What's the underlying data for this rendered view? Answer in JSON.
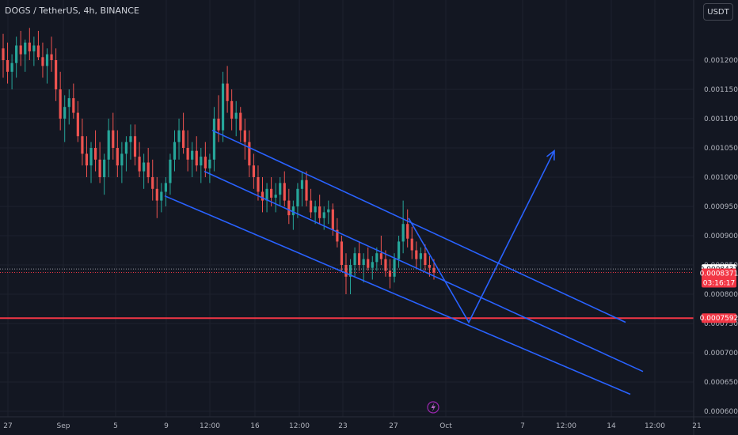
{
  "header": {
    "symbol_text": "DOGS / TetherUS, 4h, BINANCE",
    "currency_button": "USDT"
  },
  "colors": {
    "background": "#131722",
    "grid": "#1e222d",
    "up": "#26a69a",
    "down": "#ef5350",
    "drawing": "#2962ff",
    "support": "#f23645",
    "axis_text": "#b2b5be"
  },
  "icons": {
    "event_marker": "lightning-icon"
  },
  "chart_data": {
    "type": "candlestick",
    "symbol": "DOGS / TetherUS",
    "interval": "4h",
    "exchange": "BINANCE",
    "x_ticks": [
      "27",
      "Sep",
      "5",
      "9",
      "12:00",
      "16",
      "12:00",
      "23",
      "27",
      "Oct",
      "7",
      "12:00",
      "14",
      "12:00",
      "21"
    ],
    "y_ticks": [
      "0.0012000",
      "0.0011500",
      "0.0011000",
      "0.0010500",
      "0.0010000",
      "0.0009500",
      "0.0009000",
      "0.0008500",
      "0.0008000",
      "0.0007500",
      "0.0007000",
      "0.0006500",
      "0.0006000"
    ],
    "ylim": [
      0.000585,
      0.00126
    ],
    "price_tags": [
      {
        "value": "0.0008431",
        "price": 0.0008431,
        "bg": "#ffffff",
        "fg": "#131722",
        "line": "dotted"
      },
      {
        "value": "0.0008371",
        "price": 0.0008371,
        "bg": "#f23645",
        "fg": "#ffffff",
        "line": "dotted",
        "countdown": "03:16:17"
      },
      {
        "value": "0.0007592",
        "price": 0.0007592,
        "bg": "#f23645",
        "fg": "#ffffff",
        "line": "solid"
      }
    ],
    "horizontal_support": 0.0007592,
    "trend_channel": {
      "upper_line": [
        [
          0.0,
          0.00108
        ],
        [
          1.0,
          0.000752
        ]
      ],
      "middle_line": [
        [
          0.0,
          0.00101
        ],
        [
          1.0,
          0.000668
        ]
      ],
      "lower_line": [
        [
          0.0,
          0.000968
        ],
        [
          1.0,
          0.000629
        ]
      ]
    },
    "projection_path": [
      0.00093,
      0.000752,
      0.001045
    ],
    "candles_ohlc": [
      [
        0.00122,
        0.001245,
        0.00117,
        0.0012
      ],
      [
        0.0012,
        0.00123,
        0.00116,
        0.00118
      ],
      [
        0.00118,
        0.00121,
        0.00115,
        0.001195
      ],
      [
        0.001195,
        0.00124,
        0.00117,
        0.001225
      ],
      [
        0.001225,
        0.00125,
        0.00119,
        0.00121
      ],
      [
        0.00121,
        0.001235,
        0.00118,
        0.00123
      ],
      [
        0.00123,
        0.001255,
        0.0012,
        0.001215
      ],
      [
        0.001215,
        0.00124,
        0.00119,
        0.001225
      ],
      [
        0.001225,
        0.00125,
        0.0012,
        0.001205
      ],
      [
        0.001205,
        0.00123,
        0.00117,
        0.00119
      ],
      [
        0.00119,
        0.00122,
        0.00116,
        0.00121
      ],
      [
        0.00121,
        0.00124,
        0.00118,
        0.0012
      ],
      [
        0.0012,
        0.00122,
        0.00113,
        0.00115
      ],
      [
        0.00115,
        0.00118,
        0.00108,
        0.0011
      ],
      [
        0.0011,
        0.00114,
        0.00106,
        0.00112
      ],
      [
        0.00112,
        0.00115,
        0.00109,
        0.001135
      ],
      [
        0.001135,
        0.00116,
        0.0011,
        0.00111
      ],
      [
        0.00111,
        0.00113,
        0.00106,
        0.00107
      ],
      [
        0.00107,
        0.0011,
        0.00102,
        0.00104
      ],
      [
        0.00104,
        0.00107,
        0.001,
        0.00102
      ],
      [
        0.00102,
        0.00106,
        0.00099,
        0.00105
      ],
      [
        0.00105,
        0.00108,
        0.00101,
        0.00103
      ],
      [
        0.00103,
        0.00106,
        0.00099,
        0.001
      ],
      [
        0.001,
        0.00104,
        0.00097,
        0.00103
      ],
      [
        0.00103,
        0.0011,
        0.001,
        0.00108
      ],
      [
        0.00108,
        0.00111,
        0.00103,
        0.00105
      ],
      [
        0.00105,
        0.00108,
        0.001,
        0.00102
      ],
      [
        0.00102,
        0.00106,
        0.00099,
        0.00104
      ],
      [
        0.00104,
        0.00107,
        0.00101,
        0.00106
      ],
      [
        0.00106,
        0.00109,
        0.00103,
        0.00107
      ],
      [
        0.00107,
        0.00109,
        0.00102,
        0.001035
      ],
      [
        0.001035,
        0.00106,
        0.001,
        0.00101
      ],
      [
        0.00101,
        0.00104,
        0.00098,
        0.001025
      ],
      [
        0.001025,
        0.00105,
        0.00099,
        0.001
      ],
      [
        0.001,
        0.00103,
        0.00096,
        0.00098
      ],
      [
        0.00098,
        0.001,
        0.00093,
        0.00096
      ],
      [
        0.00096,
        0.00099,
        0.00094,
        0.000975
      ],
      [
        0.000975,
        0.001,
        0.00095,
        0.00099
      ],
      [
        0.00099,
        0.00104,
        0.00097,
        0.00103
      ],
      [
        0.00103,
        0.00108,
        0.00101,
        0.00106
      ],
      [
        0.00106,
        0.0011,
        0.00103,
        0.00108
      ],
      [
        0.00108,
        0.00111,
        0.00104,
        0.00105
      ],
      [
        0.00105,
        0.00108,
        0.00101,
        0.00103
      ],
      [
        0.00103,
        0.00106,
        0.001,
        0.001045
      ],
      [
        0.001045,
        0.00107,
        0.00101,
        0.00102
      ],
      [
        0.00102,
        0.00105,
        0.00099,
        0.001035
      ],
      [
        0.001035,
        0.00106,
        0.001,
        0.001015
      ],
      [
        0.001015,
        0.00104,
        0.00099,
        0.00103
      ],
      [
        0.00103,
        0.00112,
        0.00101,
        0.0011
      ],
      [
        0.0011,
        0.00114,
        0.00106,
        0.00108
      ],
      [
        0.00108,
        0.00118,
        0.00106,
        0.00116
      ],
      [
        0.00116,
        0.00119,
        0.00111,
        0.00113
      ],
      [
        0.00113,
        0.00115,
        0.00108,
        0.0011
      ],
      [
        0.0011,
        0.00113,
        0.00107,
        0.00111
      ],
      [
        0.00111,
        0.00112,
        0.00106,
        0.00108
      ],
      [
        0.00108,
        0.0011,
        0.00103,
        0.00106
      ],
      [
        0.00106,
        0.00108,
        0.001,
        0.00102
      ],
      [
        0.00102,
        0.00104,
        0.00098,
        0.001
      ],
      [
        0.001,
        0.00102,
        0.00096,
        0.000975
      ],
      [
        0.000975,
        0.001,
        0.00094,
        0.00096
      ],
      [
        0.00096,
        0.00099,
        0.00094,
        0.00098
      ],
      [
        0.00098,
        0.001,
        0.00095,
        0.000965
      ],
      [
        0.000965,
        0.00099,
        0.00094,
        0.00097
      ],
      [
        0.00097,
        0.001,
        0.00095,
        0.00099
      ],
      [
        0.00099,
        0.00101,
        0.00095,
        0.00096
      ],
      [
        0.00096,
        0.00098,
        0.00092,
        0.000935
      ],
      [
        0.000935,
        0.00096,
        0.00091,
        0.00095
      ],
      [
        0.00095,
        0.00099,
        0.00093,
        0.00098
      ],
      [
        0.00098,
        0.00101,
        0.00095,
        0.000995
      ],
      [
        0.000995,
        0.00101,
        0.00095,
        0.00096
      ],
      [
        0.00096,
        0.00098,
        0.00093,
        0.00094
      ],
      [
        0.00094,
        0.00096,
        0.00092,
        0.00095
      ],
      [
        0.00095,
        0.00097,
        0.00092,
        0.00093
      ],
      [
        0.00093,
        0.00095,
        0.00091,
        0.00094
      ],
      [
        0.00094,
        0.00096,
        0.00092,
        0.000945
      ],
      [
        0.000945,
        0.000955,
        0.0009,
        0.00091
      ],
      [
        0.00091,
        0.00093,
        0.00088,
        0.00089
      ],
      [
        0.00089,
        0.0009,
        0.00084,
        0.00085
      ],
      [
        0.00085,
        0.00087,
        0.0008,
        0.00083
      ],
      [
        0.00083,
        0.00086,
        0.0008,
        0.00085
      ],
      [
        0.00085,
        0.00088,
        0.00083,
        0.00087
      ],
      [
        0.00087,
        0.00089,
        0.00084,
        0.00085
      ],
      [
        0.00085,
        0.00087,
        0.00082,
        0.00086
      ],
      [
        0.00086,
        0.00088,
        0.00084,
        0.000845
      ],
      [
        0.000845,
        0.000865,
        0.000825,
        0.000855
      ],
      [
        0.000855,
        0.00088,
        0.00084,
        0.00087
      ],
      [
        0.00087,
        0.0009,
        0.00085,
        0.00086
      ],
      [
        0.00086,
        0.000875,
        0.00083,
        0.00084
      ],
      [
        0.00084,
        0.00086,
        0.00081,
        0.00083
      ],
      [
        0.00083,
        0.00087,
        0.00082,
        0.00086
      ],
      [
        0.00086,
        0.0009,
        0.000845,
        0.00089
      ],
      [
        0.00089,
        0.00096,
        0.00087,
        0.00092
      ],
      [
        0.00092,
        0.000945,
        0.00088,
        0.000895
      ],
      [
        0.000895,
        0.000915,
        0.00086,
        0.000875
      ],
      [
        0.000875,
        0.00089,
        0.000845,
        0.00086
      ],
      [
        0.00086,
        0.00088,
        0.00084,
        0.00087
      ],
      [
        0.00087,
        0.000885,
        0.00084,
        0.00085
      ],
      [
        0.00085,
        0.000865,
        0.00083,
        0.000845
      ],
      [
        0.000845,
        0.00086,
        0.000825,
        0.000837
      ]
    ]
  }
}
